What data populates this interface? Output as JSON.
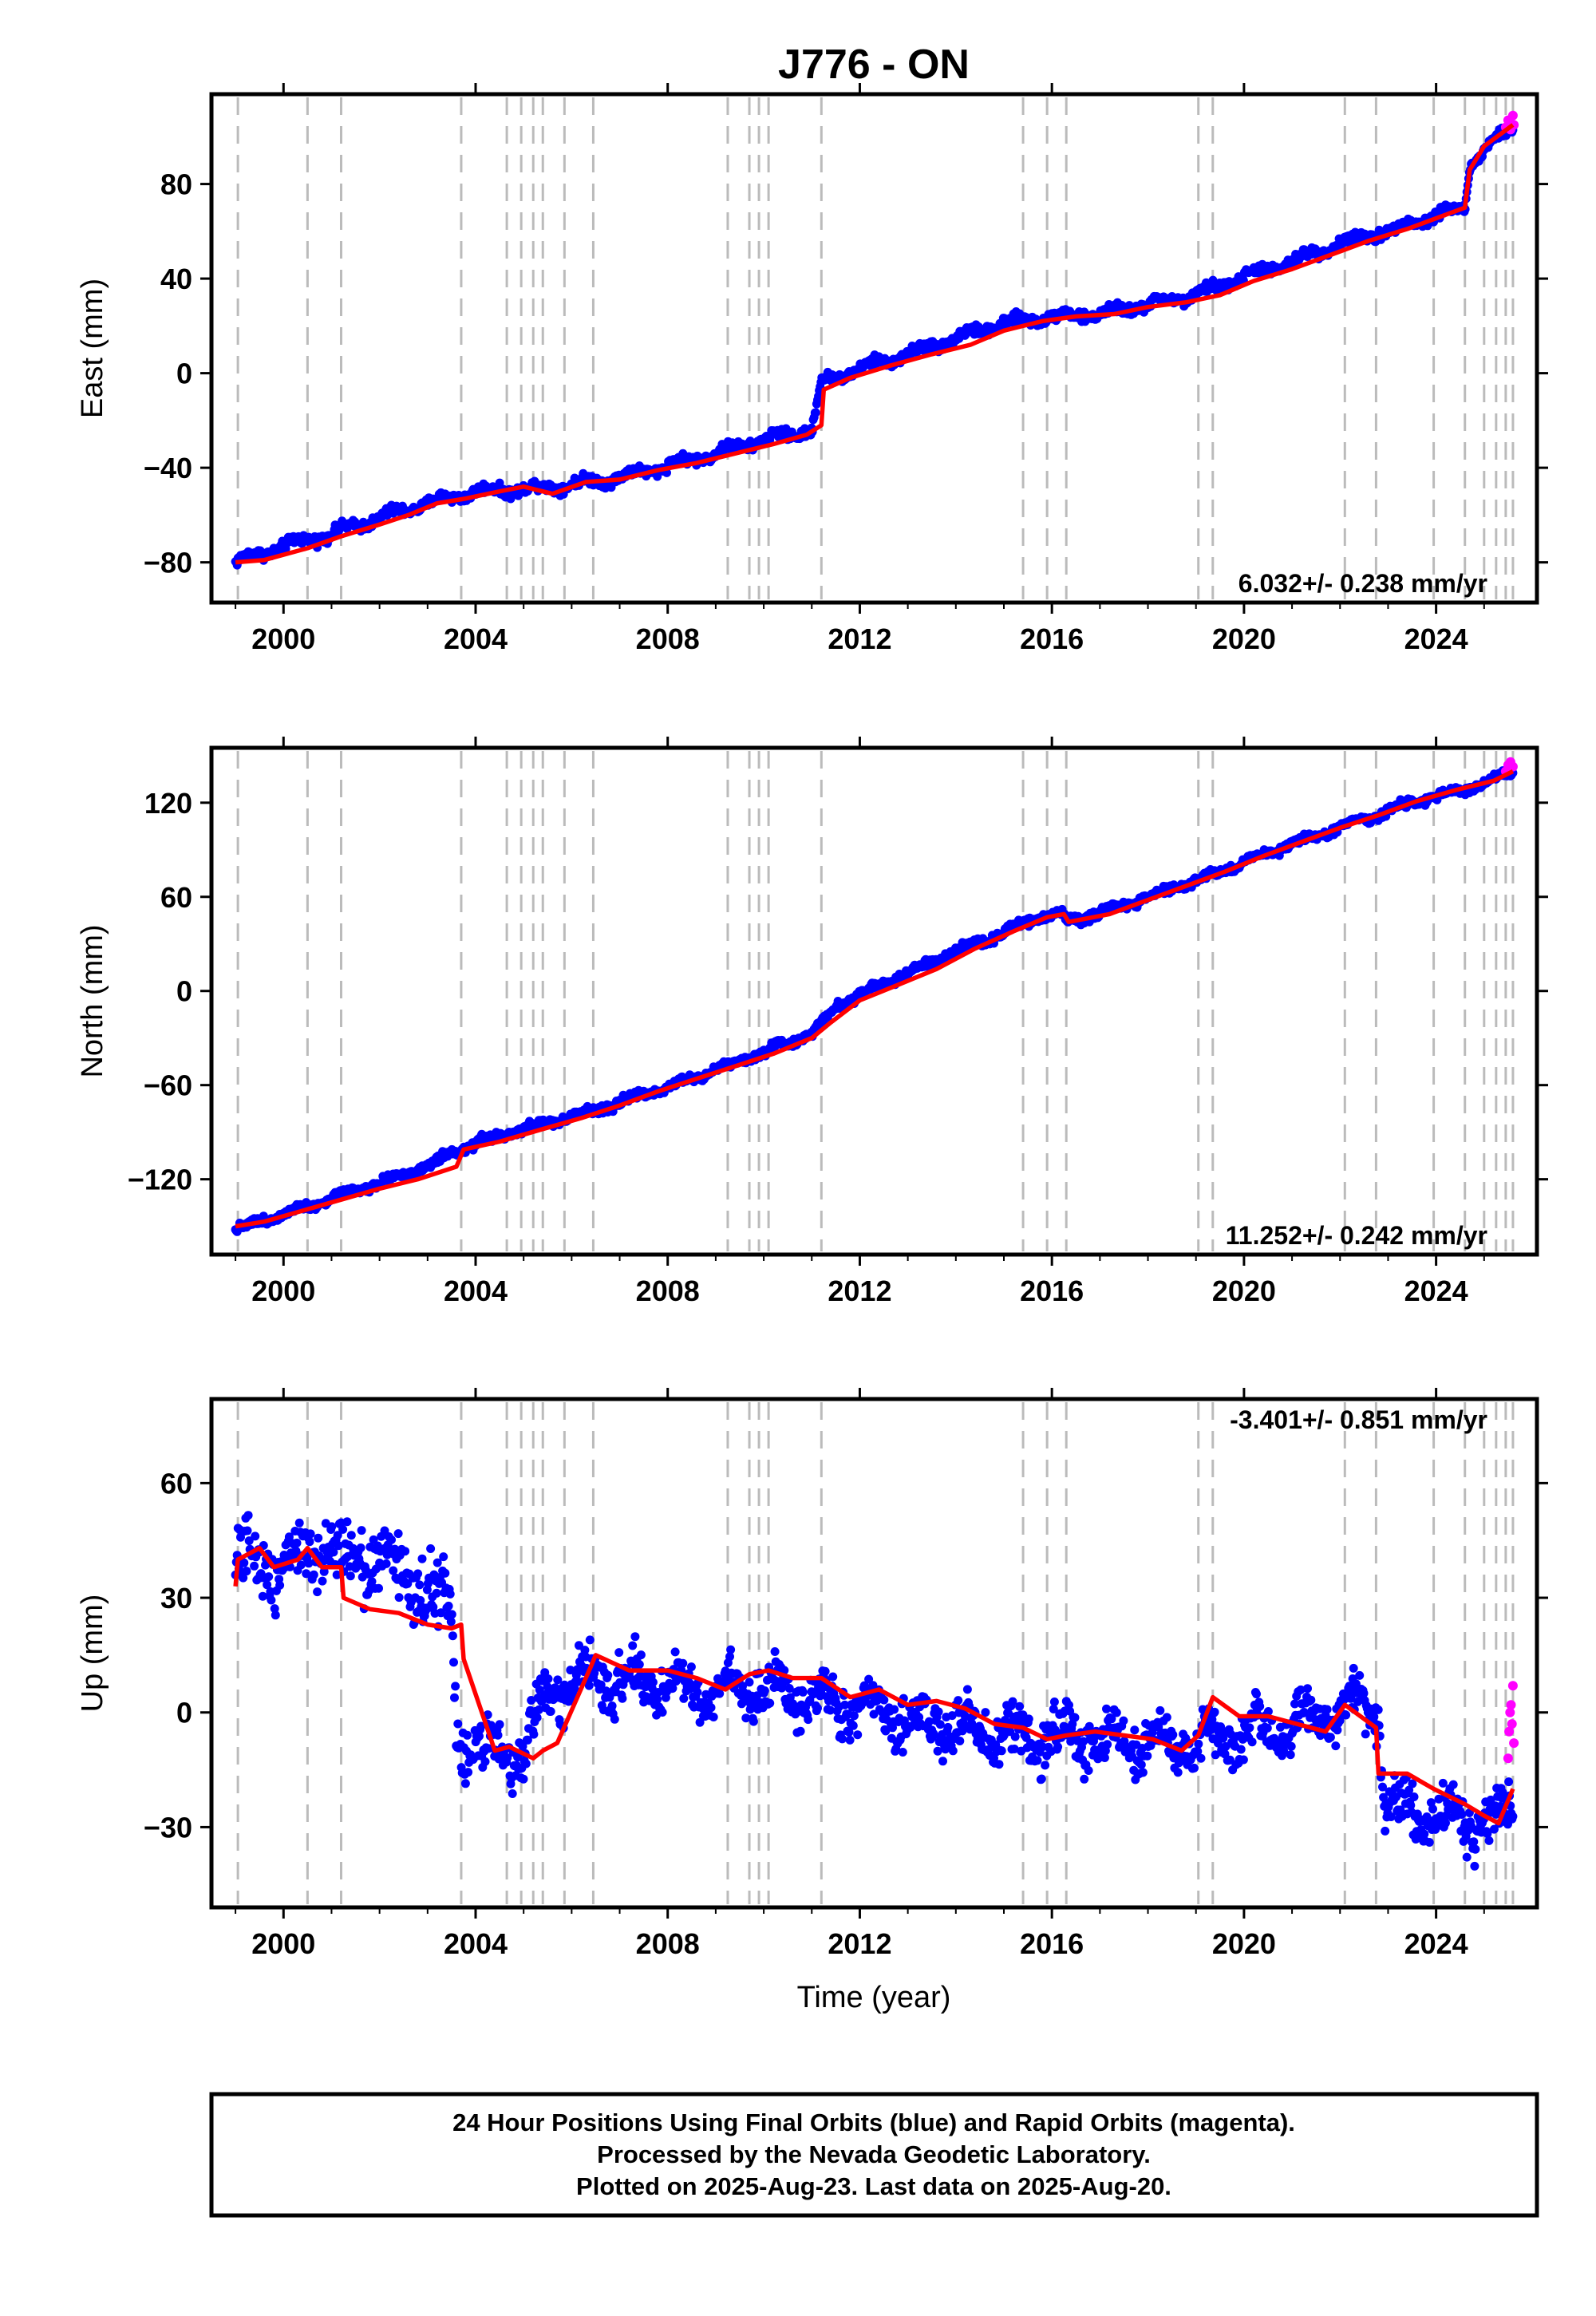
{
  "title": "J776 - ON",
  "xlabel": "Time (year)",
  "footer": {
    "line1": "24 Hour Positions Using Final Orbits (blue) and Rapid Orbits (magenta).",
    "line2": "Processed by the Nevada Geodetic Laboratory.",
    "line3": "Plotted on 2025-Aug-23. Last data on 2025-Aug-20."
  },
  "colors": {
    "final_orbits": "#0000ff",
    "rapid_orbits": "#ff00ff",
    "model": "#ff0000",
    "event_lines": "#bbbbbb",
    "frame": "#000000"
  },
  "chart_data": [
    {
      "type": "scatter",
      "panel": "east",
      "ylabel": "East (mm)",
      "rate_label": "6.032+/- 0.238 mm/yr",
      "xlim": [
        1998.5,
        2026.1
      ],
      "ylim": [
        -97,
        118
      ],
      "xticks": [
        "2000",
        "2004",
        "2008",
        "2012",
        "2016",
        "2020",
        "2024"
      ],
      "yticks": [
        "−80",
        "−40",
        "0",
        "40",
        "80"
      ],
      "ytick_values": [
        -80,
        -40,
        0,
        40,
        80
      ],
      "series": [
        {
          "name": "",
          "color": "#0000ff",
          "note_key": "final",
          "x": [
            1999.0,
            2000.0,
            2001.0,
            2002.0,
            2003.0,
            2004.0,
            2005.0,
            2006.0,
            2007.0,
            2008.0,
            2009.0,
            2010.0,
            2011.0,
            2011.2,
            2012.0,
            2013.0,
            2014.0,
            2015.0,
            2016.0,
            2017.0,
            2018.0,
            2019.0,
            2020.0,
            2021.0,
            2022.0,
            2023.0,
            2024.0,
            2024.6,
            2024.7,
            2025.2,
            2025.6
          ],
          "y": [
            -80,
            -73,
            -68,
            -61,
            -55,
            -50,
            -49,
            -47,
            -44,
            -39,
            -34,
            -28,
            -24,
            -4,
            2,
            8,
            15,
            21,
            24,
            25,
            29,
            33,
            41,
            47,
            55,
            60,
            67,
            70,
            88,
            98,
            104
          ]
        },
        {
          "name": "",
          "color": "#ff00ff",
          "note_key": "rapid",
          "x": [
            2025.45,
            2025.5,
            2025.55,
            2025.6,
            2025.62
          ],
          "y": [
            104,
            107,
            103,
            109,
            105
          ]
        },
        {
          "name": "",
          "color": "#ff0000",
          "note_key": "model",
          "x": [
            1999.0,
            1999.6,
            2000.5,
            2001.2,
            2002.0,
            2002.6,
            2003.2,
            2003.8,
            2004.5,
            2005.0,
            2005.6,
            2006.3,
            2007.0,
            2007.8,
            2008.6,
            2009.4,
            2010.2,
            2010.9,
            2011.2,
            2011.25,
            2011.8,
            2012.6,
            2013.5,
            2014.3,
            2015.0,
            2015.8,
            2016.5,
            2017.3,
            2018.0,
            2018.8,
            2019.5,
            2020.2,
            2021.0,
            2021.8,
            2022.6,
            2023.4,
            2024.2,
            2024.6,
            2024.7,
            2025.0,
            2025.6
          ],
          "y": [
            -80,
            -79,
            -74,
            -69,
            -64,
            -60,
            -55,
            -53,
            -50,
            -48,
            -51,
            -46,
            -45,
            -41,
            -38,
            -34,
            -30,
            -26,
            -22,
            -7,
            -2,
            3,
            8,
            12,
            18,
            22,
            24,
            25,
            28,
            30,
            33,
            39,
            44,
            50,
            56,
            61,
            67,
            70,
            86,
            96,
            105
          ]
        }
      ],
      "event_lines": [
        1999.05,
        2000.5,
        2001.2,
        2003.7,
        2004.65,
        2004.95,
        2005.2,
        2005.4,
        2005.85,
        2006.45,
        2009.25,
        2009.7,
        2009.9,
        2010.1,
        2011.2,
        2015.4,
        2015.9,
        2016.3,
        2019.05,
        2019.35,
        2022.1,
        2022.75,
        2023.95,
        2024.6,
        2025.0,
        2025.25,
        2025.45,
        2025.6
      ]
    },
    {
      "type": "scatter",
      "panel": "north",
      "ylabel": "North (mm)",
      "rate_label": "11.252+/- 0.242 mm/yr",
      "xlim": [
        1998.5,
        2026.1
      ],
      "ylim": [
        -168,
        155
      ],
      "xticks": [
        "2000",
        "2004",
        "2008",
        "2012",
        "2016",
        "2020",
        "2024"
      ],
      "yticks": [
        "−120",
        "−60",
        "0",
        "60",
        "120"
      ],
      "ytick_values": [
        -120,
        -60,
        0,
        60,
        120
      ],
      "series": [
        {
          "name": "",
          "color": "#0000ff",
          "note_key": "final",
          "x": [
            1999.0,
            2000.0,
            2001.0,
            2002.0,
            2003.0,
            2003.7,
            2004.0,
            2005.0,
            2006.0,
            2007.0,
            2008.0,
            2009.0,
            2010.0,
            2011.0,
            2011.5,
            2012.0,
            2013.0,
            2014.0,
            2015.0,
            2015.8,
            2016.2,
            2016.3,
            2017.0,
            2018.0,
            2019.0,
            2020.0,
            2021.0,
            2022.0,
            2023.0,
            2024.0,
            2025.0,
            2025.6
          ],
          "y": [
            -152,
            -142,
            -132,
            -122,
            -112,
            -101,
            -97,
            -88,
            -80,
            -71,
            -61,
            -50,
            -39,
            -27,
            -10,
            -2,
            11,
            25,
            37,
            48,
            50,
            44,
            50,
            60,
            70,
            82,
            94,
            104,
            115,
            124,
            132,
            140
          ]
        },
        {
          "name": "",
          "color": "#ff00ff",
          "note_key": "rapid",
          "x": [
            2025.45,
            2025.5,
            2025.55,
            2025.6
          ],
          "y": [
            140,
            144,
            146,
            143
          ]
        },
        {
          "name": "",
          "color": "#ff0000",
          "note_key": "model",
          "x": [
            1999.0,
            1999.6,
            2000.4,
            2001.2,
            2002.0,
            2002.8,
            2003.6,
            2003.75,
            2004.5,
            2005.4,
            2006.2,
            2007.0,
            2007.8,
            2008.6,
            2009.4,
            2010.2,
            2011.0,
            2011.4,
            2012.0,
            2012.8,
            2013.6,
            2014.4,
            2015.2,
            2015.9,
            2016.25,
            2016.35,
            2017.2,
            2018.0,
            2018.8,
            2019.6,
            2020.4,
            2021.2,
            2022.0,
            2022.8,
            2023.6,
            2024.4,
            2025.2,
            2025.6
          ],
          "y": [
            -150,
            -147,
            -140,
            -133,
            -126,
            -120,
            -112,
            -101,
            -96,
            -88,
            -81,
            -73,
            -64,
            -56,
            -48,
            -40,
            -30,
            -20,
            -6,
            4,
            14,
            27,
            38,
            47,
            49,
            44,
            49,
            58,
            67,
            76,
            86,
            95,
            104,
            112,
            121,
            128,
            134,
            140
          ]
        }
      ],
      "event_lines": [
        1999.05,
        2000.5,
        2001.2,
        2003.7,
        2004.65,
        2004.95,
        2005.2,
        2005.4,
        2005.85,
        2006.45,
        2009.25,
        2009.7,
        2009.9,
        2010.1,
        2011.2,
        2015.4,
        2015.9,
        2016.3,
        2019.05,
        2019.35,
        2022.1,
        2022.75,
        2023.95,
        2024.6,
        2025.0,
        2025.25,
        2025.45,
        2025.6
      ]
    },
    {
      "type": "scatter",
      "panel": "up",
      "ylabel": "Up (mm)",
      "rate_label": "-3.401+/- 0.851 mm/yr",
      "xlim": [
        1998.5,
        2026.1
      ],
      "ylim": [
        -51,
        82
      ],
      "xticks": [
        "2000",
        "2004",
        "2008",
        "2012",
        "2016",
        "2020",
        "2024"
      ],
      "yticks": [
        "−30",
        "0",
        "30",
        "60"
      ],
      "ytick_values": [
        -30,
        0,
        30,
        60
      ],
      "series": [
        {
          "name": "",
          "color": "#0000ff",
          "note_key": "final",
          "x": [
            1999.0,
            2000.0,
            2001.0,
            2002.0,
            2003.0,
            2003.5,
            2003.6,
            2004.0,
            2005.0,
            2005.4,
            2006.0,
            2007.0,
            2008.0,
            2009.0,
            2010.0,
            2011.0,
            2012.0,
            2013.0,
            2014.0,
            2015.0,
            2016.0,
            2017.0,
            2018.0,
            2019.0,
            2020.0,
            2021.0,
            2022.0,
            2022.8,
            2022.9,
            2024.0,
            2025.0,
            2025.6
          ],
          "y": [
            38,
            40,
            42,
            40,
            32,
            26,
            -6,
            -10,
            -12,
            4,
            8,
            9,
            7,
            6,
            6,
            4,
            1,
            -2,
            -4,
            -6,
            -6,
            -7,
            -8,
            -8,
            -6,
            -3,
            1,
            3,
            -26,
            -27,
            -29,
            -25
          ]
        },
        {
          "name": "",
          "color": "#ff00ff",
          "note_key": "rapid",
          "x": [
            2025.5,
            2025.52,
            2025.54,
            2025.56,
            2025.58,
            2025.6,
            2025.62
          ],
          "y": [
            -12,
            -5,
            0,
            2,
            -3,
            7,
            -8
          ]
        },
        {
          "name": "",
          "color": "#ff0000",
          "note_key": "model",
          "x": [
            1999.0,
            1999.05,
            1999.5,
            1999.8,
            2000.3,
            2000.5,
            2000.8,
            2001.2,
            2001.25,
            2001.8,
            2002.4,
            2003.0,
            2003.5,
            2003.7,
            2003.75,
            2004.4,
            2004.7,
            2005.2,
            2005.4,
            2005.7,
            2006.4,
            2006.5,
            2007.2,
            2008.0,
            2008.6,
            2009.2,
            2009.7,
            2010.1,
            2010.6,
            2011.2,
            2011.8,
            2012.4,
            2013.0,
            2013.6,
            2014.2,
            2014.8,
            2015.4,
            2015.9,
            2016.3,
            2016.9,
            2017.5,
            2018.1,
            2018.7,
            2019.05,
            2019.35,
            2019.9,
            2020.5,
            2021.1,
            2021.7,
            2022.1,
            2022.75,
            2022.8,
            2023.4,
            2023.95,
            2024.6,
            2025.0,
            2025.3,
            2025.6
          ],
          "y": [
            33,
            40,
            43,
            38,
            40,
            43,
            38,
            38,
            30,
            27,
            26,
            23,
            22,
            23,
            14,
            -10,
            -9,
            -12,
            -10,
            -8,
            12,
            15,
            11,
            11,
            9,
            6,
            10,
            11,
            9,
            9,
            4,
            6,
            2,
            3,
            1,
            -3,
            -4,
            -7,
            -6,
            -5,
            -6,
            -7,
            -10,
            -6,
            4,
            -1,
            -1,
            -3,
            -5,
            2,
            -4,
            -16,
            -16,
            -20,
            -24,
            -27,
            -29,
            -20
          ]
        }
      ],
      "event_lines": [
        1999.05,
        2000.5,
        2001.2,
        2003.7,
        2004.65,
        2004.95,
        2005.2,
        2005.4,
        2005.85,
        2006.45,
        2009.25,
        2009.7,
        2009.9,
        2010.1,
        2011.2,
        2015.4,
        2015.9,
        2016.3,
        2019.05,
        2019.35,
        2022.1,
        2022.75,
        2023.95,
        2024.6,
        2025.0,
        2025.25,
        2025.45,
        2025.6
      ]
    }
  ]
}
